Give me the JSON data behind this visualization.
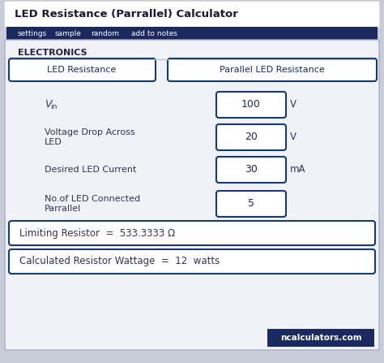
{
  "title": "LED Resistance (Parrallel) Calculator",
  "title_bg": "#ffffff",
  "title_color": "#1a1a2e",
  "nav_bg": "#1a2a5e",
  "nav_items": [
    "settings",
    "sample",
    "random",
    "add to notes"
  ],
  "nav_color": "#ffffff",
  "body_bg": "#f0f2f8",
  "section_label": "ELECTRONICS",
  "tab1": "LED Resistance",
  "tab2": "Parallel LED Resistance",
  "tab_border": "#1a3a6e",
  "tab_bg": "#ffffff",
  "tab_text": "#1a2a5e",
  "fields": [
    {
      "label": "V",
      "subscript": "in",
      "value": "100",
      "unit": "V"
    },
    {
      "label": "Voltage Drop Across\nLED",
      "value": "20",
      "unit": "V"
    },
    {
      "label": "Desired LED Current",
      "value": "30",
      "unit": "mA"
    },
    {
      "label": "No.of LED Connected\nParrallel",
      "value": "5",
      "unit": ""
    }
  ],
  "result1": "Limiting Resistor  =  533.3333 Ω",
  "result2": "Calculated Resistor Wattage  =  12  watts",
  "result_border": "#1a3a6e",
  "result_bg": "#ffffff",
  "footer_bg": "#1a2a5e",
  "footer_text": "ncalculators.com",
  "footer_color": "#ffffff",
  "input_border": "#1a3a6e",
  "input_bg": "#ffffff",
  "label_color": "#333355",
  "value_color": "#1a2a5e"
}
